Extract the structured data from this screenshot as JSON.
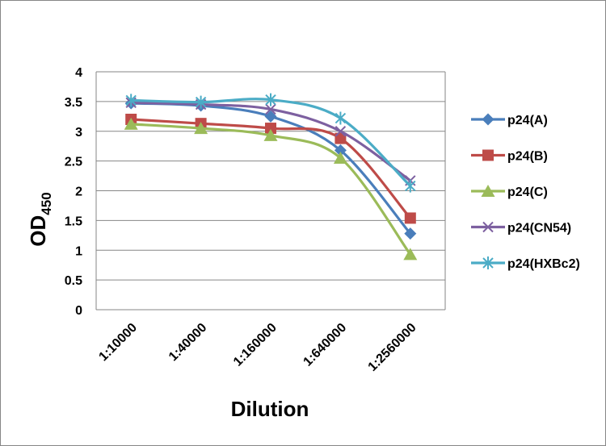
{
  "chart_data": {
    "type": "line",
    "xlabel": "Dilution",
    "ylabel": "OD",
    "ylabel_sub": "450",
    "categories": [
      "1:10000",
      "1:40000",
      "1:160000",
      "1:640000",
      "1:2560000"
    ],
    "ylim": [
      0,
      4
    ],
    "yticks": [
      0,
      0.5,
      1,
      1.5,
      2,
      2.5,
      3,
      3.5,
      4
    ],
    "ytick_labels": [
      "0",
      "0.5",
      "1",
      "1.5",
      "2",
      "2.5",
      "3",
      "3.5",
      "4"
    ],
    "grid": true,
    "legend_position": "right",
    "series": [
      {
        "name": "p24(A)",
        "color": "#4a7ebb",
        "marker": "diamond",
        "values": [
          3.47,
          3.43,
          3.25,
          2.68,
          1.28
        ]
      },
      {
        "name": "p24(B)",
        "color": "#be4b48",
        "marker": "square",
        "values": [
          3.2,
          3.13,
          3.05,
          2.88,
          1.54
        ]
      },
      {
        "name": "p24(C)",
        "color": "#9bbb59",
        "marker": "triangle",
        "values": [
          3.12,
          3.05,
          2.93,
          2.55,
          0.93
        ]
      },
      {
        "name": "p24(CN54)",
        "color": "#7d60a0",
        "marker": "x",
        "values": [
          3.48,
          3.45,
          3.37,
          3.0,
          2.17
        ]
      },
      {
        "name": "p24(HXBc2)",
        "color": "#4bacc6",
        "marker": "star",
        "values": [
          3.52,
          3.49,
          3.53,
          3.22,
          2.08
        ]
      }
    ]
  }
}
